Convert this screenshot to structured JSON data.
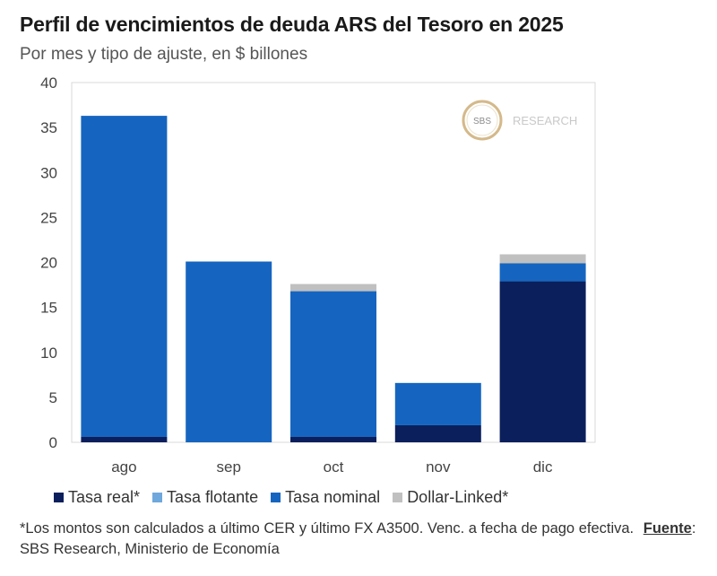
{
  "title": "Perfil de vencimientos de deuda ARS del Tesoro en 2025",
  "subtitle": "Por mes y tipo de ajuste, en $ billones",
  "watermark": {
    "mark": "SBS",
    "text": "RESEARCH"
  },
  "colors": {
    "tasa_real": "#0b1f5c",
    "tasa_flotante": "#6fa8dc",
    "tasa_nominal": "#1565c0",
    "dollar_linked": "#c0c0c0"
  },
  "chart_data": {
    "type": "bar",
    "stacked": true,
    "title": "Perfil de vencimientos de deuda ARS del Tesoro en 2025",
    "categories": [
      "ago",
      "sep",
      "oct",
      "nov",
      "dic"
    ],
    "series": [
      {
        "name": "Tasa real*",
        "color": "#0b1f5c",
        "values": [
          0.6,
          0,
          0.6,
          1.9,
          17.9
        ]
      },
      {
        "name": "Tasa flotante",
        "color": "#6fa8dc",
        "values": [
          0,
          0,
          0,
          0,
          0
        ]
      },
      {
        "name": "Tasa nominal",
        "color": "#1565c0",
        "values": [
          35.7,
          20.1,
          16.2,
          4.7,
          2.0
        ]
      },
      {
        "name": "Dollar-Linked*",
        "color": "#c0c0c0",
        "values": [
          0,
          0,
          0.8,
          0,
          1.0
        ]
      }
    ],
    "ylim": [
      0,
      40
    ],
    "yticks": [
      0,
      5,
      10,
      15,
      20,
      25,
      30,
      35,
      40
    ],
    "xlabel": "",
    "ylabel": "",
    "legend": "bottom"
  },
  "footnote": {
    "text": "*Los montos son calculados a último CER y último FX A3500. Venc. a fecha de pago efectiva.",
    "source_label": "Fuente",
    "source_text": ": SBS Research, Ministerio de Economía"
  }
}
